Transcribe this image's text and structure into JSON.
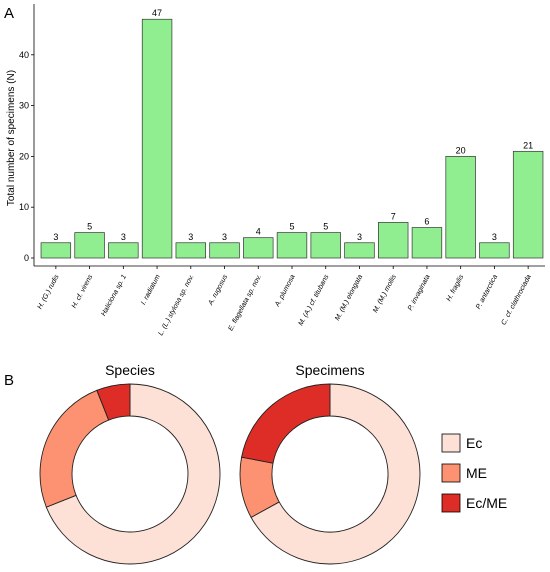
{
  "panel_labels": [
    "A",
    "B"
  ],
  "chart_data": [
    {
      "type": "bar",
      "ylabel": "Total number of specimens (N)",
      "xlabel": "",
      "ylim": [
        0,
        50
      ],
      "yticks": [
        0,
        10,
        20,
        30,
        40
      ],
      "grid": false,
      "bar_color": "#90ee90",
      "categories": [
        "H. (G.) rudis",
        "H. cf. virens",
        "Haliclona sp. 1",
        "I. radiatum",
        "L. (L.) stylosa sp. nov.",
        "A. rugosus",
        "E. flagellata sp. nov.",
        "A. plumosa",
        "M. (A.) cf. titubans",
        "M. (M.) elongata",
        "M. (M.) mollis",
        "P. invaginata",
        "H. fragilis",
        "P. antarctica",
        "C. cf. clathrociada"
      ],
      "values": [
        3,
        5,
        3,
        47,
        3,
        3,
        4,
        5,
        5,
        3,
        7,
        6,
        20,
        3,
        21
      ]
    },
    {
      "type": "pie",
      "title": "Species",
      "slices": [
        {
          "label": "Ec",
          "value": 0.69
        },
        {
          "label": "ME",
          "value": 0.25
        },
        {
          "label": "Ec/ME",
          "value": 0.06
        }
      ]
    },
    {
      "type": "pie",
      "title": "Specimens",
      "slices": [
        {
          "label": "Ec",
          "value": 0.67
        },
        {
          "label": "ME",
          "value": 0.11
        },
        {
          "label": "Ec/ME",
          "value": 0.22
        }
      ]
    }
  ],
  "legend": {
    "placement": "right",
    "items": [
      {
        "label": "Ec",
        "color": "#fde0d6"
      },
      {
        "label": "ME",
        "color": "#fc9272"
      },
      {
        "label": "Ec/ME",
        "color": "#de2d26"
      }
    ]
  }
}
